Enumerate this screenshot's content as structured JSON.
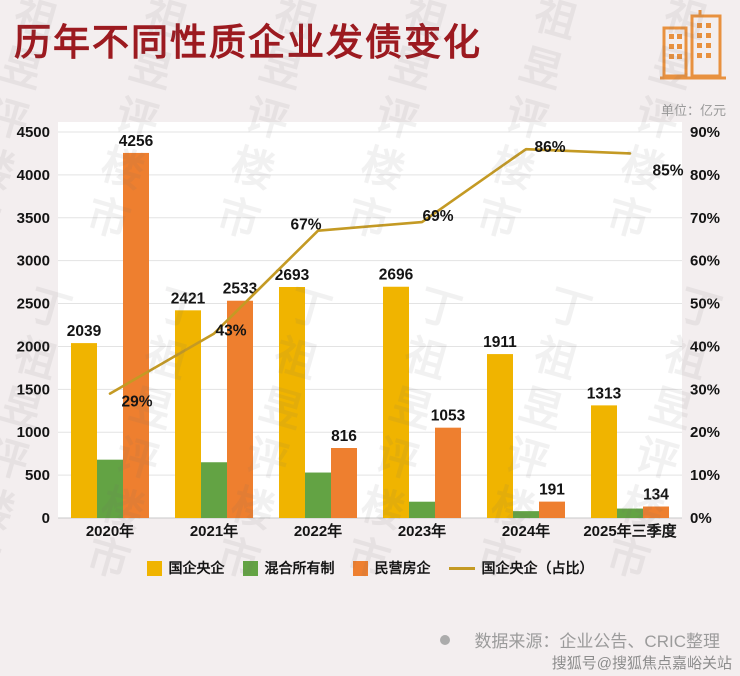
{
  "header": {
    "title": "历年不同性质企业发债变化",
    "unit_label": "单位：亿元"
  },
  "watermark": {
    "text": "丁祖昱评楼市"
  },
  "chart_data": {
    "type": "bar",
    "subtype": "grouped-bars-with-percentage-line",
    "title": "历年不同性质企业发债变化",
    "unit": "亿元",
    "categories": [
      "2020年",
      "2021年",
      "2022年",
      "2023年",
      "2024年",
      "2025年三季度"
    ],
    "bar_series": [
      {
        "name": "国企央企",
        "color": "#F0B400",
        "values": [
          2039,
          2421,
          2693,
          2696,
          1911,
          1313
        ],
        "show_labels": true
      },
      {
        "name": "混合所有制",
        "color": "#63A344",
        "values": [
          680,
          650,
          530,
          190,
          80,
          110
        ],
        "show_labels": false
      },
      {
        "name": "民营房企",
        "color": "#EE7F2F",
        "values": [
          4256,
          2533,
          816,
          1053,
          191,
          134
        ],
        "show_labels": true
      }
    ],
    "line_series": {
      "name": "国企央企（占比）",
      "color": "#C49A24",
      "axis": "right",
      "values_pct": [
        29,
        43,
        67,
        69,
        86,
        85
      ],
      "point_labels": [
        "29%",
        "43%",
        "67%",
        "69%",
        "86%",
        "85%"
      ]
    },
    "left_axis": {
      "min": 0,
      "max": 4500,
      "step": 500,
      "tick_labels": [
        "0",
        "500",
        "1000",
        "1500",
        "2000",
        "2500",
        "3000",
        "3500",
        "4000",
        "4500"
      ]
    },
    "right_axis": {
      "min": 0,
      "max": 90,
      "step": 10,
      "tick_labels": [
        "0%",
        "10%",
        "20%",
        "30%",
        "40%",
        "50%",
        "60%",
        "70%",
        "80%",
        "90%"
      ]
    },
    "grid": true,
    "legend_position": "bottom"
  },
  "footer": {
    "source": "数据来源：企业公告、CRIC整理",
    "credit": "搜狐号@搜狐焦点嘉峪关站"
  }
}
